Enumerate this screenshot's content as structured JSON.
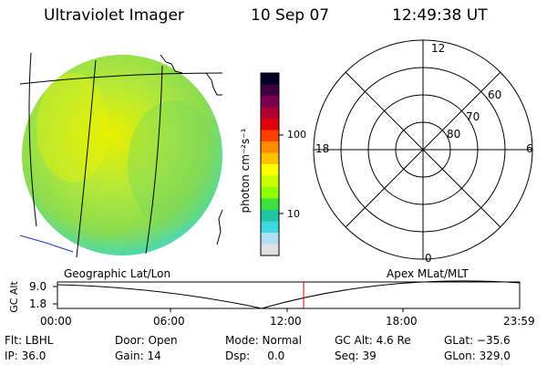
{
  "header": {
    "instrument": "Ultraviolet Imager",
    "date": "10 Sep 07",
    "time": "12:49:38 UT"
  },
  "colorbar": {
    "unit_label": "photon cm⁻²s⁻¹",
    "ticks": [
      "100",
      "10"
    ],
    "colors": [
      "#000020",
      "#3a0040",
      "#7a0050",
      "#b00030",
      "#e00010",
      "#ff4000",
      "#ff8c00",
      "#ffc000",
      "#ffff00",
      "#c8ff00",
      "#8cff00",
      "#40e040",
      "#20c8a0",
      "#40d8e0",
      "#b0e0f0",
      "#e0e0e0"
    ]
  },
  "polar_plot": {
    "mlt_labels": [
      "12",
      "18",
      "6",
      "0"
    ],
    "lat_labels": [
      "60",
      "70",
      "80"
    ]
  },
  "labels": {
    "left": "Geographic Lat/Lon",
    "right": "Apex MLat/MLT"
  },
  "altitude_plot": {
    "ylabel": "GC Alt",
    "yticks": [
      "9.0",
      "1.8"
    ],
    "xticks": [
      "00:00",
      "06:00",
      "12:00",
      "18:00",
      "23:59"
    ],
    "marker_color": "#d00000"
  },
  "footer": {
    "flt": "Flt: LBHL",
    "ip": "IP: 36.0",
    "door": "Door: Open",
    "gain": "Gain: 14",
    "mode": "Mode: Normal",
    "dsp": "Dsp:     0.0",
    "gcalt": "GC Alt: 4.6 Re",
    "seq": "Seq: 39",
    "glat": "GLat: −35.6",
    "glon": "GLon: 329.0"
  }
}
